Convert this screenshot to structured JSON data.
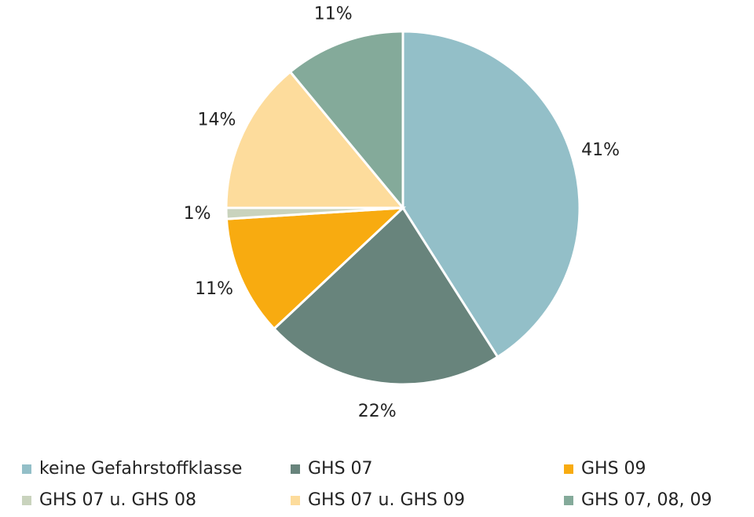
{
  "chart_data": {
    "type": "pie",
    "categories": [
      "keine Gefahrstoffklasse",
      "GHS 07",
      "GHS 09",
      "GHS 07 u. GHS 08",
      "GHS 07 u. GHS 09",
      "GHS 07, 08, 09"
    ],
    "values": [
      41,
      22,
      11,
      1,
      14,
      11
    ],
    "value_labels": [
      "41%",
      "22%",
      "11%",
      "1%",
      "14%",
      "11%"
    ],
    "colors": [
      "#93bfc8",
      "#68847c",
      "#f8ab10",
      "#c9d3bd",
      "#fddc9c",
      "#84aa9a"
    ],
    "legend": "bottom"
  }
}
